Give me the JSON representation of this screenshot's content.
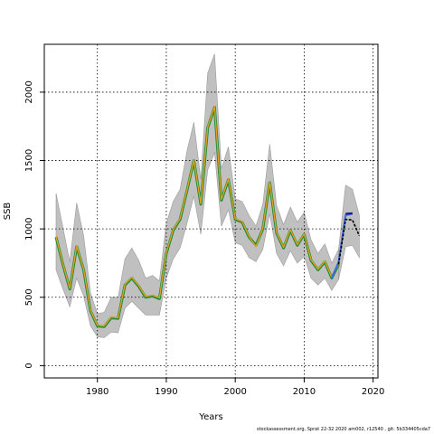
{
  "footer": "stockassessment.org, Sprat 22-32 2020 am002, r12540 , git: 5b334405cda7",
  "colors": {
    "band": "#c0c0c0",
    "band_edge": "#9a9a9a",
    "main": "#e0a020",
    "green": "#1a8a3a",
    "blue": "#3a6ee0",
    "navy": "#1a1a8a",
    "forecast": "#000000",
    "grid": "#000000"
  },
  "chart_data": {
    "type": "line",
    "title": "",
    "xlabel": "Years",
    "ylabel": "SSB",
    "xlim": [
      1972.3,
      2020.7
    ],
    "ylim": [
      -90,
      2350
    ],
    "xticks": [
      1980,
      1990,
      2000,
      2010,
      2020
    ],
    "yticks": [
      0,
      500,
      1000,
      1500,
      2000
    ],
    "grid": true,
    "x": [
      1974,
      1975,
      1976,
      1977,
      1978,
      1979,
      1980,
      1981,
      1982,
      1983,
      1984,
      1985,
      1986,
      1987,
      1988,
      1989,
      1990,
      1991,
      1992,
      1993,
      1994,
      1995,
      1996,
      1997,
      1998,
      1999,
      2000,
      2001,
      2002,
      2003,
      2004,
      2005,
      2006,
      2007,
      2008,
      2009,
      2010,
      2011,
      2012,
      2013,
      2014,
      2015
    ],
    "ssb": [
      940,
      740,
      560,
      870,
      700,
      400,
      290,
      285,
      350,
      345,
      590,
      640,
      580,
      500,
      510,
      490,
      820,
      990,
      1070,
      1280,
      1500,
      1180,
      1740,
      1890,
      1210,
      1360,
      1070,
      1050,
      940,
      880,
      1000,
      1340,
      970,
      860,
      990,
      880,
      960,
      770,
      700,
      760,
      640,
      740
    ],
    "upper": [
      1260,
      1010,
      760,
      1190,
      950,
      530,
      380,
      390,
      500,
      500,
      780,
      860,
      770,
      640,
      660,
      620,
      1040,
      1200,
      1290,
      1570,
      1780,
      1360,
      2140,
      2280,
      1440,
      1600,
      1220,
      1200,
      1100,
      1020,
      1180,
      1620,
      1170,
      1030,
      1160,
      1050,
      1120,
      920,
      820,
      890,
      750,
      850
    ],
    "lower": [
      700,
      560,
      430,
      640,
      510,
      290,
      210,
      205,
      245,
      240,
      420,
      470,
      420,
      370,
      370,
      370,
      640,
      780,
      860,
      1040,
      1240,
      960,
      1430,
      1560,
      1020,
      1140,
      900,
      880,
      790,
      760,
      850,
      1110,
      820,
      730,
      840,
      750,
      800,
      640,
      590,
      640,
      550,
      630
    ],
    "series": [
      {
        "x": [
          1974,
          1975,
          1976,
          1977,
          1978,
          1979,
          1980,
          1981,
          1982,
          1983,
          1984,
          1985,
          1986,
          1987,
          1988,
          1989,
          1990,
          1991,
          1992,
          1993,
          1994,
          1995,
          1996,
          1997,
          1998,
          1999,
          2000,
          2001,
          2002,
          2003,
          2004,
          2005,
          2006,
          2007,
          2008,
          2009,
          2010,
          2011,
          2012,
          2013,
          2014,
          2015
        ],
        "values": [
          945,
          745,
          565,
          875,
          705,
          405,
          295,
          290,
          355,
          350,
          595,
          645,
          585,
          505,
          515,
          495,
          825,
          995,
          1075,
          1285,
          1505,
          1185,
          1745,
          1895,
          1215,
          1365,
          1075,
          1055,
          945,
          870,
          1005,
          1345,
          975,
          865,
          995,
          885,
          965,
          775,
          705,
          765,
          645,
          745
        ]
      }
    ],
    "retro_blue": {
      "x": [
        2014,
        2015,
        2016,
        2017
      ],
      "values": [
        640,
        760,
        1100,
        1110
      ]
    },
    "retro_navy": {
      "x": [
        2016,
        2017
      ],
      "values": [
        1110,
        1115
      ]
    },
    "forecast": {
      "x": [
        2015,
        2016,
        2017,
        2018
      ],
      "values": [
        740,
        1070,
        1065,
        950
      ]
    },
    "forecast_upper": [
      850,
      1320,
      1290,
      1100
    ],
    "forecast_lower": [
      630,
      870,
      880,
      790
    ]
  }
}
